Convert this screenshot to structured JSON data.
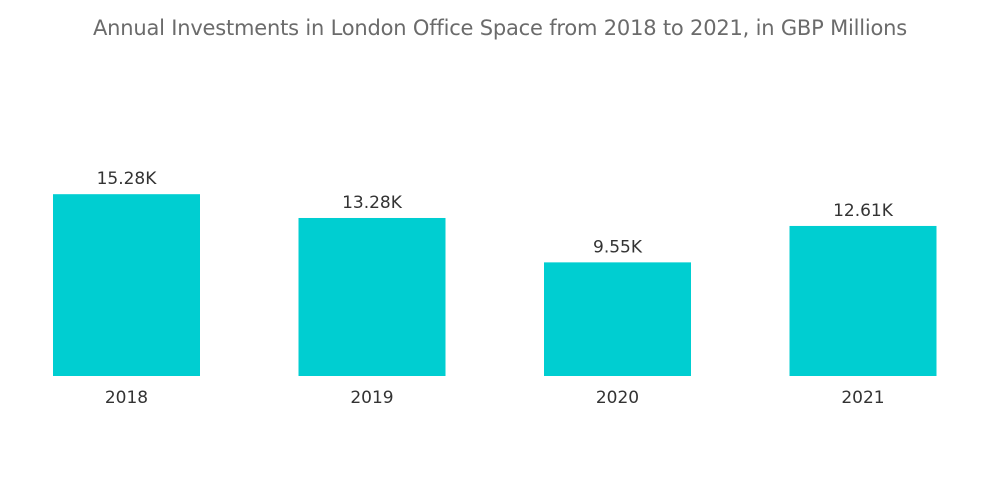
{
  "title": "Annual Investments in London Office Space from 2018 to 2021, in GBP Millions",
  "colors": {
    "bar": "#00CED1",
    "text": "#333333",
    "title": "#6B6B6B"
  },
  "chart_data": {
    "type": "bar",
    "title": "Annual Investments in London Office Space from 2018 to 2021, in GBP Millions",
    "categories": [
      "2018",
      "2019",
      "2020",
      "2021"
    ],
    "values": [
      15280,
      13280,
      9550,
      12610
    ],
    "data_labels": [
      "15.28K",
      "13.28K",
      "9.55K",
      "12.61K"
    ],
    "xlabel": "",
    "ylabel": "",
    "ylim": [
      0,
      15800
    ],
    "grid": false,
    "legend": "none"
  }
}
